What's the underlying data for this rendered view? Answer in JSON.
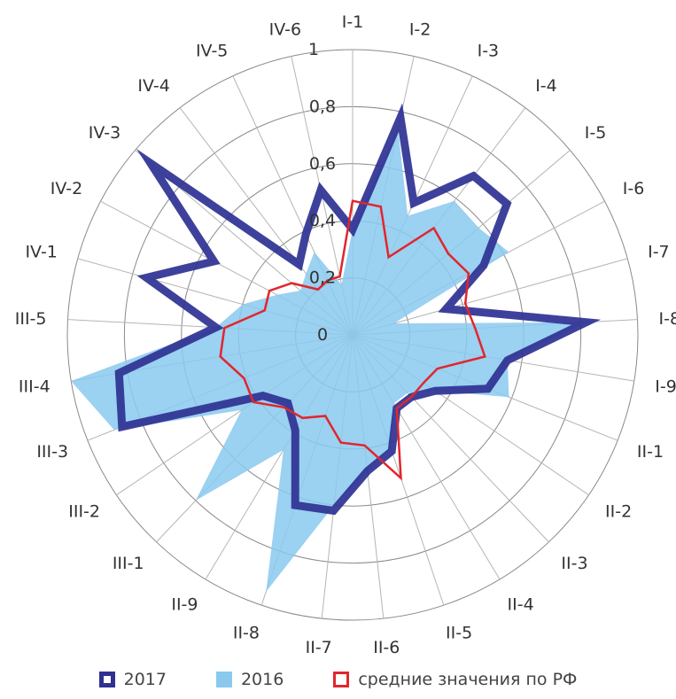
{
  "chart_data": {
    "type": "radar",
    "categories": [
      "I-1",
      "I-2",
      "I-3",
      "I-4",
      "I-5",
      "I-6",
      "I-7",
      "I-8",
      "I-9",
      "II-1",
      "II-2",
      "II-3",
      "II-4",
      "II-5",
      "II-6",
      "II-7",
      "II-8",
      "II-9",
      "III-1",
      "III-2",
      "III-3",
      "III-4",
      "III-5",
      "IV-1",
      "IV-2",
      "IV-3",
      "IV-4",
      "IV-5",
      "IV-6"
    ],
    "r_ticks": [
      "0",
      "0,2",
      "0,4",
      "0,6",
      "0,8",
      "1"
    ],
    "rlim": [
      0,
      1
    ],
    "grid": true,
    "legend_position": "bottom",
    "series": [
      {
        "name": "2017",
        "style": "thick-line",
        "color": "#2e3192",
        "values": [
          0.37,
          0.78,
          0.51,
          0.7,
          0.71,
          0.52,
          0.34,
          0.82,
          0.55,
          0.51,
          0.35,
          0.3,
          0.3,
          0.43,
          0.48,
          0.62,
          0.63,
          0.39,
          0.33,
          0.38,
          0.87,
          0.83,
          0.48,
          0.75,
          0.55,
          0.93,
          0.31,
          0.39,
          0.52
        ]
      },
      {
        "name": "2016",
        "style": "filled-area",
        "color": "#89c9ee",
        "values": [
          0.37,
          0.74,
          0.46,
          0.59,
          0.58,
          0.62,
          0.15,
          0.82,
          0.55,
          0.59,
          0.35,
          0.28,
          0.28,
          0.42,
          0.48,
          0.6,
          0.95,
          0.47,
          0.8,
          0.47,
          0.9,
          1.0,
          0.48,
          0.4,
          0.3,
          0.24,
          0.27,
          0.32,
          0.18
        ]
      },
      {
        "name": "средние значения по РФ",
        "style": "line",
        "color": "#e1262d",
        "values": [
          0.47,
          0.46,
          0.3,
          0.47,
          0.44,
          0.46,
          0.41,
          0.43,
          0.47,
          0.32,
          0.3,
          0.3,
          0.3,
          0.53,
          0.39,
          0.38,
          0.3,
          0.34,
          0.35,
          0.42,
          0.41,
          0.47,
          0.45,
          0.32,
          0.33,
          0.28,
          0.2,
          0.21,
          0.21
        ]
      }
    ]
  },
  "legend": {
    "items": [
      {
        "label": "2017"
      },
      {
        "label": "2016"
      },
      {
        "label": "средние значения по РФ"
      }
    ]
  }
}
